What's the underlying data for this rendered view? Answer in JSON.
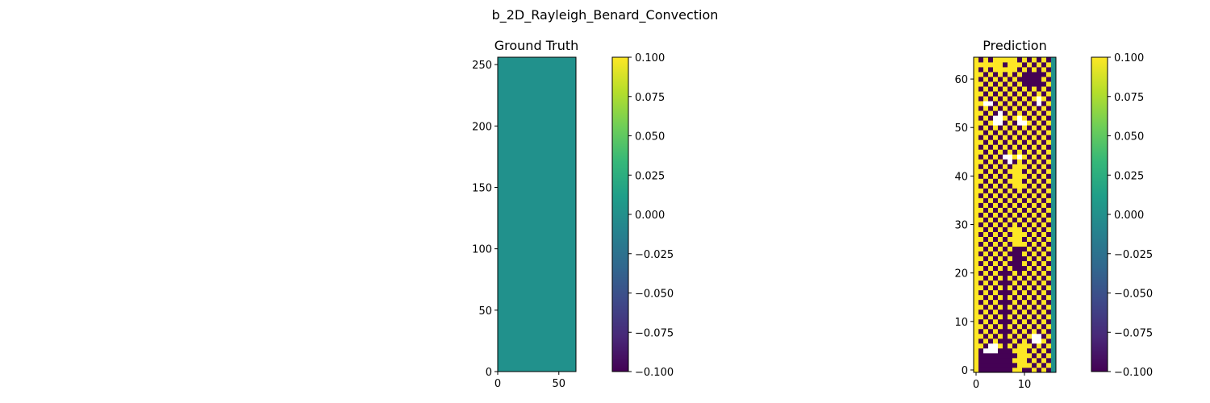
{
  "figure_title": "b_2D_Rayleigh_Benard_Convection",
  "chart_data": [
    {
      "type": "heatmap",
      "title": "Ground Truth",
      "x_ticks": [
        0,
        50
      ],
      "y_ticks": [
        0,
        50,
        100,
        150,
        200,
        250
      ],
      "xlim": [
        0,
        64
      ],
      "ylim": [
        0,
        256
      ],
      "grid": false,
      "value": 0.0,
      "colorbar": {
        "colormap": "viridis",
        "range": [
          -0.1,
          0.1
        ],
        "ticks": [
          "−0.100",
          "−0.075",
          "−0.050",
          "−0.025",
          "0.000",
          "0.025",
          "0.050",
          "0.075",
          "0.100"
        ]
      }
    },
    {
      "type": "heatmap",
      "title": "Prediction",
      "x_ticks": [
        0,
        10
      ],
      "y_ticks": [
        0,
        10,
        20,
        30,
        40,
        50,
        60
      ],
      "xlim": [
        0,
        16
      ],
      "ylim": [
        0,
        64
      ],
      "grid": false,
      "note_values": "cells alternate between -0.1 (purple) and +0.1 (yellow) in a checkerboard-like pattern; some cells are NaN (white); last column is 0.0",
      "colorbar": {
        "colormap": "viridis",
        "range": [
          -0.1,
          0.1
        ],
        "ticks": [
          "−0.100",
          "−0.075",
          "−0.050",
          "−0.025",
          "0.000",
          "0.025",
          "0.050",
          "0.075",
          "0.100"
        ]
      }
    }
  ],
  "colors": {
    "viridis": [
      "#440154",
      "#482878",
      "#3e4989",
      "#31688e",
      "#26828e",
      "#1f9e89",
      "#35b779",
      "#6ece58",
      "#b5de2b",
      "#fde725"
    ],
    "low": "#440154",
    "mid": "#21918c",
    "high": "#fde725",
    "nan": "#ffffff"
  }
}
